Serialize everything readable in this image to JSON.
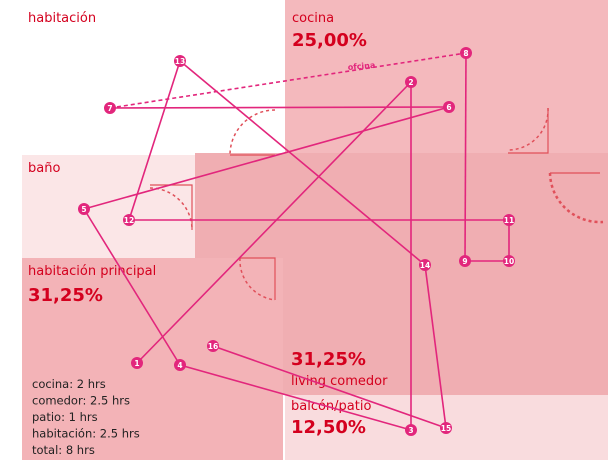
{
  "rooms": [
    {
      "name": "habitación"
    },
    {
      "name": "cocina",
      "share": "25,00%"
    },
    {
      "name": "baño"
    },
    {
      "name": "habitación principal",
      "share": "31,25%"
    },
    {
      "name": "living comedor",
      "share": "31,25%"
    },
    {
      "name": "balcón/patio",
      "share": "12,50%"
    }
  ],
  "path_label": "ofcina",
  "nodes": [
    "1",
    "2",
    "3",
    "4",
    "5",
    "6",
    "7",
    "8",
    "9",
    "10",
    "11",
    "12",
    "13",
    "14",
    "15",
    "16"
  ],
  "legend": [
    "cocina: 2 hrs",
    "comedor: 2.5 hrs",
    "patio: 1 hrs",
    "habitación: 2.5 hrs",
    "total: 8 hrs"
  ]
}
